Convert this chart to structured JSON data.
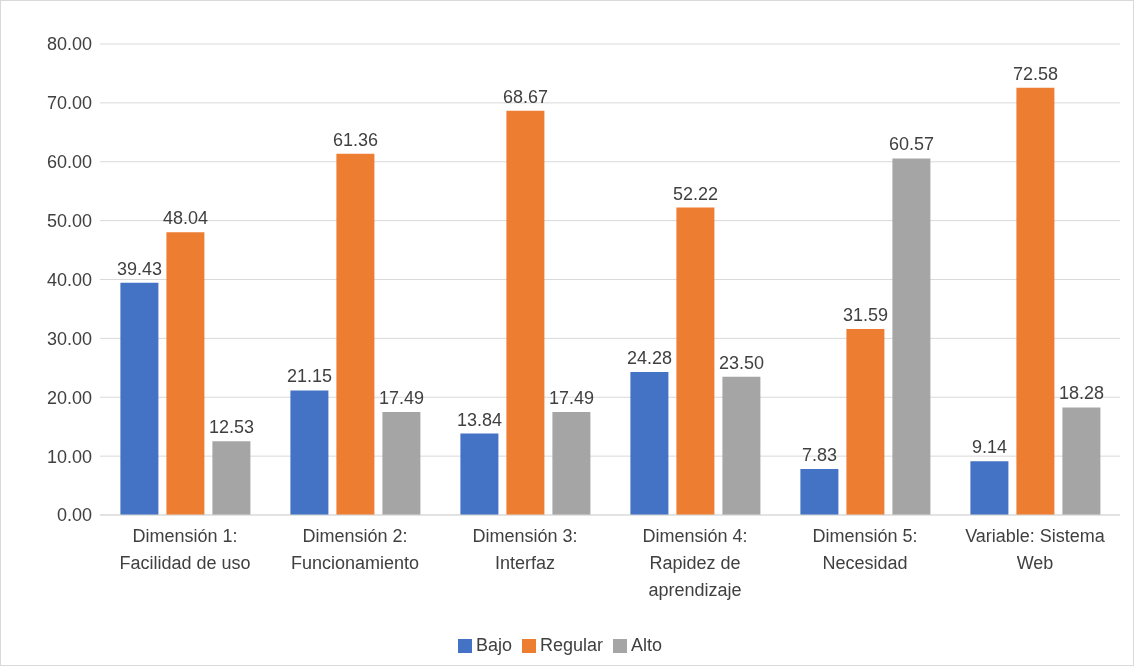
{
  "chart_data": {
    "type": "bar",
    "categories": [
      "Dimensión 1: Facilidad de uso",
      "Dimensión 2: Funcionamiento",
      "Dimensión 3: Interfaz",
      "Dimensión 4: Rapidez de aprendizaje",
      "Dimensión 5: Necesidad",
      "Variable: Sistema Web"
    ],
    "series": [
      {
        "name": "Bajo",
        "color": "#4472c4",
        "values": [
          39.43,
          21.15,
          13.84,
          24.28,
          7.83,
          9.14
        ],
        "value_labels": [
          "39.43",
          "21.15",
          "13.84",
          "24.28",
          "7.83",
          "9.14"
        ]
      },
      {
        "name": "Regular",
        "color": "#ed7d31",
        "values": [
          48.04,
          61.36,
          68.67,
          52.22,
          31.59,
          72.58
        ],
        "value_labels": [
          "48.04",
          "61.36",
          "68.67",
          "52.22",
          "31.59",
          "72.58"
        ]
      },
      {
        "name": "Alto",
        "color": "#a5a5a5",
        "values": [
          12.53,
          17.49,
          17.49,
          23.5,
          60.57,
          18.28
        ],
        "value_labels": [
          "12.53",
          "17.49",
          "17.49",
          "23.50",
          "60.57",
          "18.28"
        ]
      }
    ],
    "ylim": [
      0,
      80
    ],
    "yticks": [
      {
        "value": 0,
        "label": "0.00"
      },
      {
        "value": 10,
        "label": "10.00"
      },
      {
        "value": 20,
        "label": "20.00"
      },
      {
        "value": 30,
        "label": "30.00"
      },
      {
        "value": 40,
        "label": "40.00"
      },
      {
        "value": 50,
        "label": "50.00"
      },
      {
        "value": 60,
        "label": "60.00"
      },
      {
        "value": 70,
        "label": "70.00"
      },
      {
        "value": 80,
        "label": "80.00"
      }
    ],
    "grid": "y",
    "legend": "bottom"
  }
}
